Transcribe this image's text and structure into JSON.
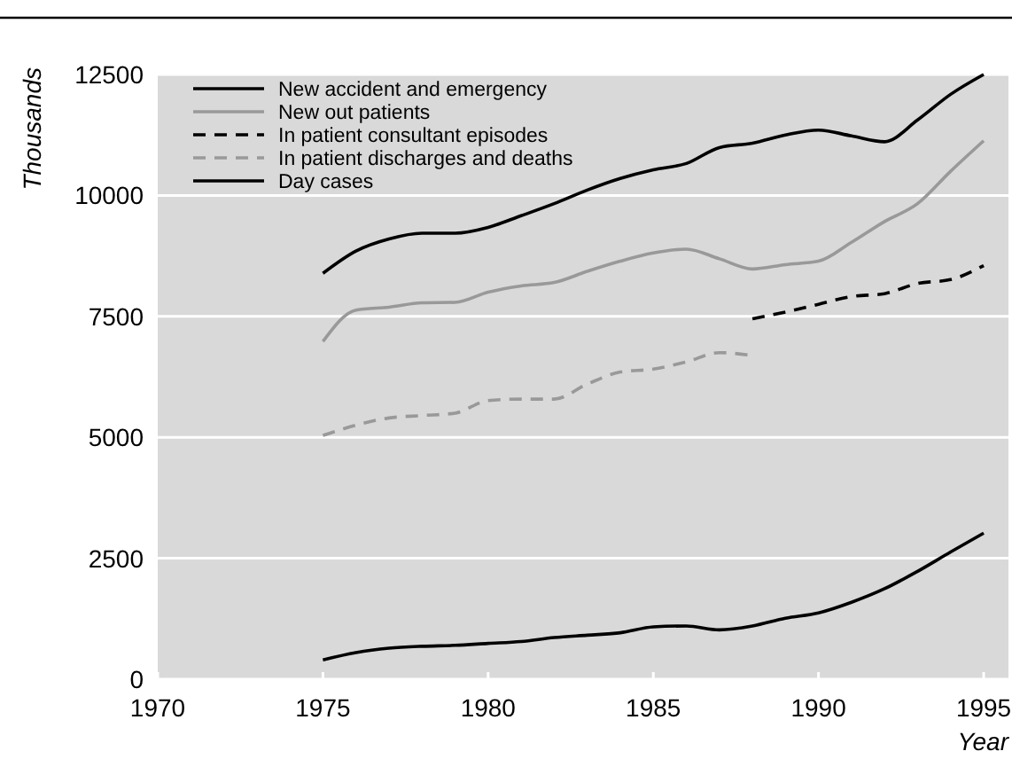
{
  "chart_data": {
    "type": "line",
    "xlabel": "Year",
    "ylabel": "Thousands",
    "xlim": [
      1970,
      1995.75
    ],
    "xticks": [
      1970,
      1975,
      1980,
      1985,
      1990,
      1995
    ],
    "ylim": [
      0,
      12500
    ],
    "yticks": [
      0,
      2500,
      5000,
      7500,
      10000,
      12500
    ],
    "grid": "y",
    "legend": "top left",
    "x": [
      1975,
      1976,
      1977,
      1978,
      1979,
      1980,
      1981,
      1982,
      1983,
      1984,
      1985,
      1986,
      1987,
      1988,
      1989,
      1990,
      1991,
      1992,
      1993,
      1994,
      1995
    ],
    "series": [
      {
        "name": "New accident and emergency",
        "color": "#000000",
        "line_style": "solid",
        "values": [
          8390,
          8850,
          9100,
          9220,
          9220,
          9340,
          9580,
          9830,
          10110,
          10350,
          10530,
          10660,
          10990,
          11080,
          11250,
          11350,
          11230,
          11110,
          11560,
          12090,
          12500
        ]
      },
      {
        "name": "New out patients",
        "color": "#999999",
        "line_style": "solid",
        "values": [
          6980,
          7630,
          7690,
          7780,
          7790,
          8000,
          8130,
          8200,
          8430,
          8640,
          8810,
          8890,
          8690,
          8480,
          8570,
          8640,
          9030,
          9460,
          9830,
          10500,
          11130
        ]
      },
      {
        "name": "In patient consultant episodes",
        "color": "#000000",
        "line_style": "dashed",
        "x": [
          1988,
          1989,
          1990,
          1991,
          1992,
          1993,
          1994,
          1995
        ],
        "values": [
          7450,
          7590,
          7750,
          7910,
          7970,
          8180,
          8260,
          8550
        ]
      },
      {
        "name": "In patient discharges and deaths",
        "color": "#999999",
        "line_style": "dashed",
        "x": [
          1975,
          1976,
          1977,
          1978,
          1979,
          1980,
          1981,
          1982,
          1983,
          1984,
          1985,
          1986,
          1987,
          1988
        ],
        "values": [
          5040,
          5250,
          5400,
          5450,
          5500,
          5760,
          5790,
          5790,
          6100,
          6350,
          6410,
          6560,
          6750,
          6690
        ]
      },
      {
        "name": "Day cases",
        "color": "#000000",
        "line_style": "solid",
        "values": [
          400,
          550,
          640,
          680,
          700,
          740,
          780,
          860,
          910,
          960,
          1080,
          1100,
          1020,
          1100,
          1260,
          1370,
          1590,
          1870,
          2230,
          2630,
          3020
        ]
      }
    ]
  }
}
